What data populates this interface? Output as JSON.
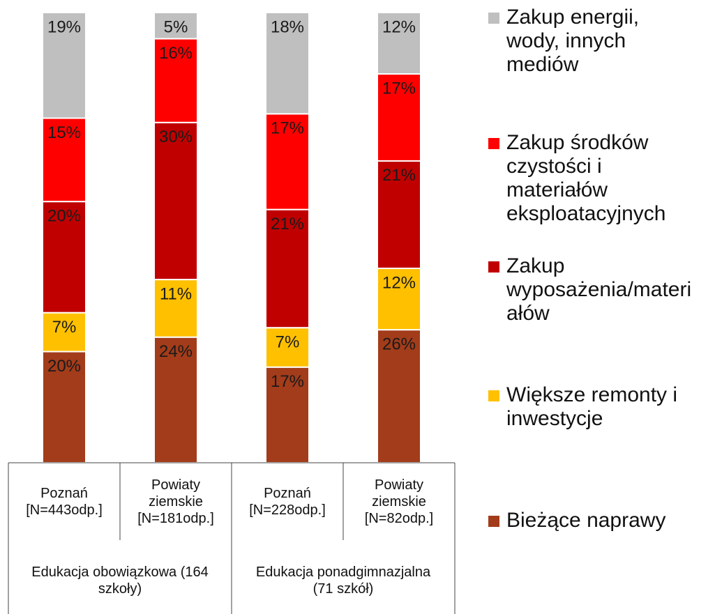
{
  "chart_data": {
    "type": "bar",
    "stacking": "percent",
    "categories": [
      "Poznań [N=443odp.]",
      "Powiaty ziemskie [N=181odp.]",
      "Poznań [N=228odp.]",
      "Powiaty ziemskie [N=82odp.]"
    ],
    "groups": [
      "Edukacja obowiązkowa (164 szkoły)",
      "Edukacja ponadgimnazjalna (71 szkół)"
    ],
    "series": [
      {
        "name": "Bieżące naprawy",
        "color": "#a33c1a",
        "values": [
          20,
          24,
          17,
          26
        ],
        "value_labels": [
          "20%",
          "24%",
          "17%",
          "26%"
        ]
      },
      {
        "name": "Większe remonty i inwestycje",
        "color": "#ffc000",
        "values": [
          7,
          11,
          7,
          12
        ],
        "value_labels": [
          "7%",
          "11%",
          "7%",
          "12%"
        ]
      },
      {
        "name": "Zakup wyposażenia/materiałów",
        "color": "#c00000",
        "values": [
          20,
          30,
          21,
          21
        ],
        "value_labels": [
          "20%",
          "30%",
          "21%",
          "21%"
        ]
      },
      {
        "name": "Zakup środków czystości i materiałów eksploatacyjnych",
        "color": "#ff0000",
        "values": [
          15,
          16,
          17,
          17
        ],
        "value_labels": [
          "15%",
          "16%",
          "17%",
          "17%"
        ]
      },
      {
        "name": "Zakup energii, wody, innych mediów",
        "color": "#bfbfbf",
        "values": [
          19,
          5,
          18,
          12
        ],
        "value_labels": [
          "19%",
          "5%",
          "18%",
          "12%"
        ]
      }
    ]
  }
}
